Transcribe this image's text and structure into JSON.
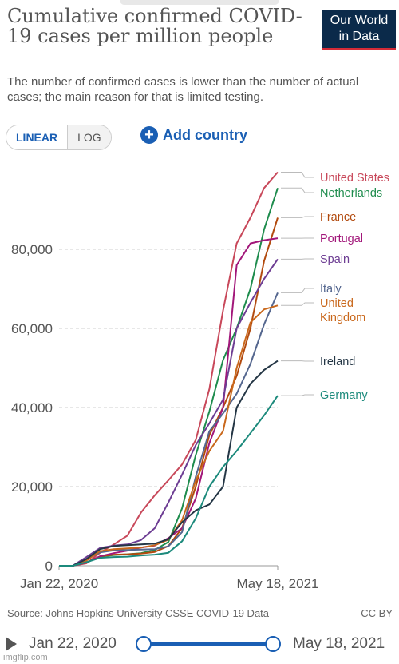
{
  "title": "Cumulative confirmed COVID-19 cases per million people",
  "subtitle": "The number of confirmed cases is lower than the number of actual cases; the main reason for that is limited testing.",
  "logo_line1": "Our World",
  "logo_line2": "in Data",
  "scale_toggle": {
    "linear": "LINEAR",
    "log": "LOG",
    "selected": "LINEAR"
  },
  "add_country": "Add country",
  "source": "Source: Johns Hopkins University CSSE COVID-19 Data",
  "license": "CC BY",
  "timeline": {
    "start": "Jan 22, 2020",
    "end": "May 18, 2021"
  },
  "watermark": "imgflip.com",
  "chart_data": {
    "type": "line",
    "xlabel": "",
    "ylabel": "",
    "x_ticks": [
      "Jan 22, 2020",
      "May 18, 2021"
    ],
    "y_ticks": [
      0,
      20000,
      40000,
      60000,
      80000
    ],
    "y_tick_labels": [
      "0",
      "20,000",
      "40,000",
      "60,000",
      "80,000"
    ],
    "ylim": [
      0,
      100000
    ],
    "x_range": [
      "2020-01-22",
      "2021-05-18"
    ],
    "grid": "horizontal dashed",
    "legend": "right, line labels",
    "x_months": [
      0,
      1,
      2,
      3,
      4,
      5,
      6,
      7,
      8,
      9,
      10,
      11,
      12,
      13,
      14,
      15,
      16
    ],
    "series": [
      {
        "name": "United States",
        "color": "#c8485a",
        "values": [
          0,
          0,
          600,
          3300,
          5400,
          7600,
          13500,
          17800,
          21600,
          25600,
          31800,
          44700,
          64500,
          81500,
          88000,
          95500,
          99500
        ]
      },
      {
        "name": "Netherlands",
        "color": "#1e8c4d",
        "values": [
          0,
          0,
          800,
          2300,
          2700,
          2900,
          3200,
          4000,
          6000,
          14500,
          28000,
          39000,
          52000,
          60000,
          70000,
          85000,
          95500
        ]
      },
      {
        "name": "France",
        "color": "#b24a0e",
        "values": [
          0,
          0,
          800,
          2400,
          2800,
          2900,
          3100,
          3500,
          5000,
          9500,
          20000,
          33000,
          40000,
          48000,
          60000,
          77000,
          88000
        ]
      },
      {
        "name": "Portugal",
        "color": "#a2177a",
        "values": [
          0,
          0,
          800,
          2400,
          3200,
          3800,
          4600,
          5100,
          7000,
          9500,
          17000,
          31000,
          40000,
          76000,
          81500,
          82300,
          82800
        ]
      },
      {
        "name": "Spain",
        "color": "#6d3d93",
        "values": [
          0,
          0,
          2200,
          4500,
          5100,
          5400,
          6500,
          9500,
          16000,
          23000,
          30500,
          36000,
          42000,
          60000,
          66500,
          72500,
          77500
        ]
      },
      {
        "name": "Italy",
        "color": "#55678f",
        "values": [
          0,
          0,
          1600,
          3400,
          3900,
          4000,
          4100,
          4200,
          4900,
          8500,
          22500,
          34000,
          38500,
          43500,
          51000,
          61000,
          69000
        ]
      },
      {
        "name": "United Kingdom",
        "color": "#c9681c",
        "values": [
          0,
          0,
          1300,
          3700,
          4200,
          4400,
          4600,
          5200,
          6600,
          11500,
          21500,
          29000,
          34000,
          50000,
          61500,
          64800,
          65800
        ]
      },
      {
        "name": "Ireland",
        "color": "#243645",
        "values": [
          0,
          0,
          1700,
          4200,
          5000,
          5200,
          5400,
          5600,
          6700,
          11000,
          14000,
          15500,
          20000,
          40000,
          46000,
          49500,
          51800
        ]
      },
      {
        "name": "Germany",
        "color": "#1c8a7c",
        "values": [
          0,
          0,
          900,
          2000,
          2200,
          2300,
          2600,
          2800,
          3300,
          6200,
          12000,
          20000,
          25000,
          29000,
          33500,
          38000,
          43000
        ]
      }
    ]
  }
}
